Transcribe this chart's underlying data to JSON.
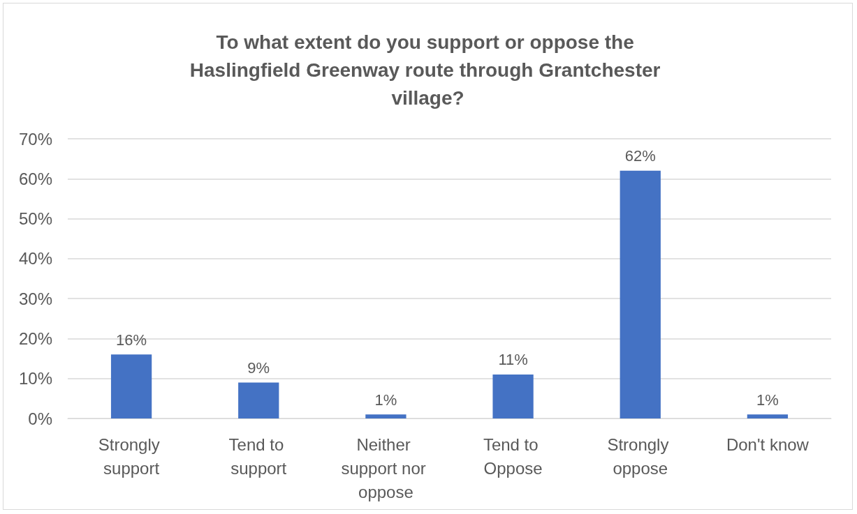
{
  "chart_data": {
    "type": "bar",
    "title": "To what extent do you support or oppose the Haslingfield Greenway route through Grantchester village?",
    "categories": [
      "Strongly support",
      "Tend to support",
      "Neither support nor oppose",
      "Tend to Oppose",
      "Strongly oppose",
      "Don't know"
    ],
    "values": [
      16,
      9,
      1,
      11,
      62,
      1
    ],
    "value_labels": [
      "16%",
      "9%",
      "1%",
      "11%",
      "62%",
      "1%"
    ],
    "color": "#4472c4",
    "ylim": [
      0,
      70
    ],
    "yticks": [
      {
        "value": 0,
        "label": "0%"
      },
      {
        "value": 10,
        "label": "10%"
      },
      {
        "value": 20,
        "label": "20%"
      },
      {
        "value": 30,
        "label": "30%"
      },
      {
        "value": 40,
        "label": "40%"
      },
      {
        "value": 50,
        "label": "50%"
      },
      {
        "value": 60,
        "label": "60%"
      },
      {
        "value": 70,
        "label": "70%"
      }
    ],
    "grid": "y"
  }
}
